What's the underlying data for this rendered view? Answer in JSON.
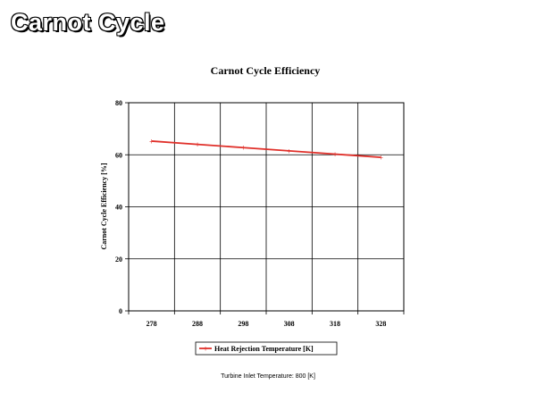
{
  "slide": {
    "title": "Carnot Cycle",
    "note": "Turbine Inlet Temperature:  800 [K]"
  },
  "colors": {
    "series": "#e0302a",
    "grid": "#000000"
  },
  "chart_data": {
    "type": "line",
    "title": "Carnot Cycle Efficiency",
    "ylabel": "Carnot Cycle Efficiency [%]",
    "xlabel": "",
    "categories": [
      "278",
      "288",
      "298",
      "308",
      "318",
      "328"
    ],
    "ylim": [
      0,
      80
    ],
    "yticks": [
      0,
      20,
      40,
      60,
      80
    ],
    "grid": true,
    "legend": "bottom",
    "series": [
      {
        "name": "Heat Rejection Temperature [K]",
        "values": [
          65.25,
          64.0,
          62.75,
          61.5,
          60.25,
          59.0
        ]
      }
    ]
  }
}
